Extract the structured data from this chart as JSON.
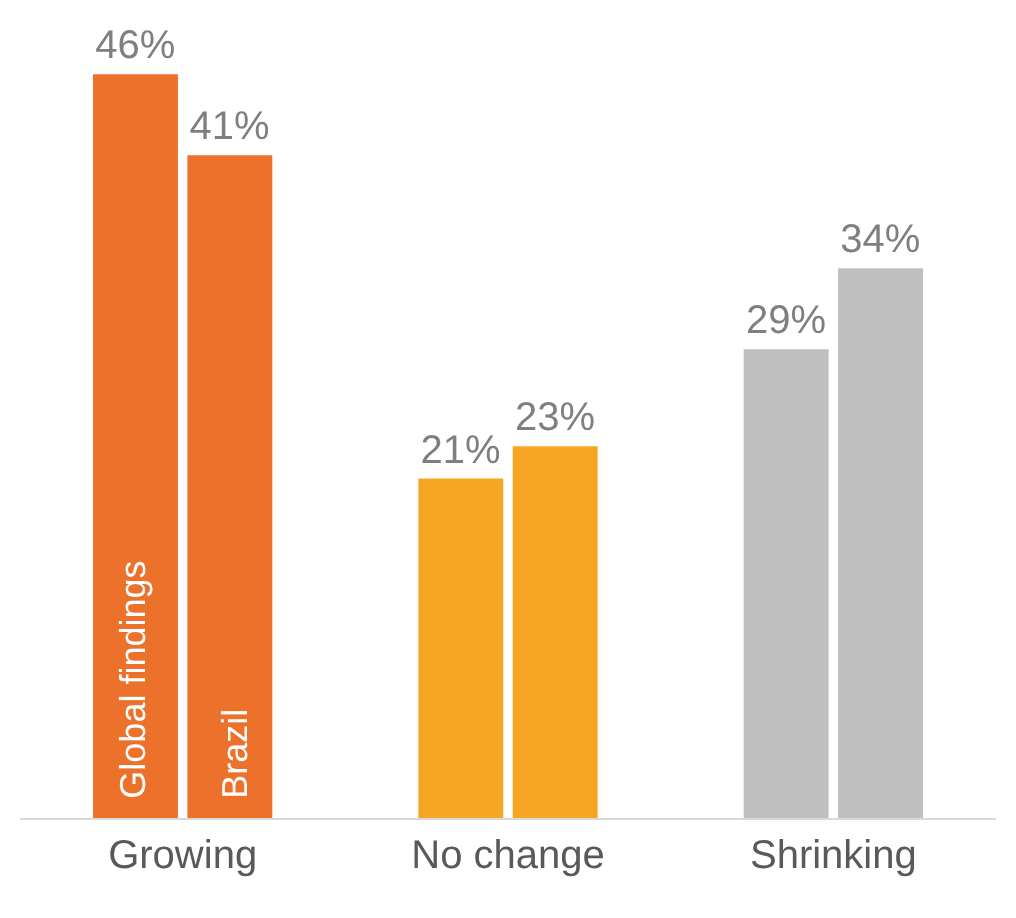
{
  "chart_data": {
    "type": "bar",
    "categories": [
      "Growing",
      "No change",
      "Shrinking"
    ],
    "series": [
      {
        "name": "Global findings",
        "colors": [
          "#ec722b",
          "#f6a623",
          "#bfbfbf"
        ],
        "values": [
          46,
          21,
          29
        ],
        "value_labels": [
          "46%",
          "21%",
          "29%"
        ]
      },
      {
        "name": "Brazil",
        "colors": [
          "#ec722b",
          "#f6a623",
          "#bfbfbf"
        ],
        "values": [
          41,
          23,
          34
        ],
        "value_labels": [
          "41%",
          "23%",
          "34%"
        ]
      }
    ],
    "legend": false,
    "grid": false
  }
}
